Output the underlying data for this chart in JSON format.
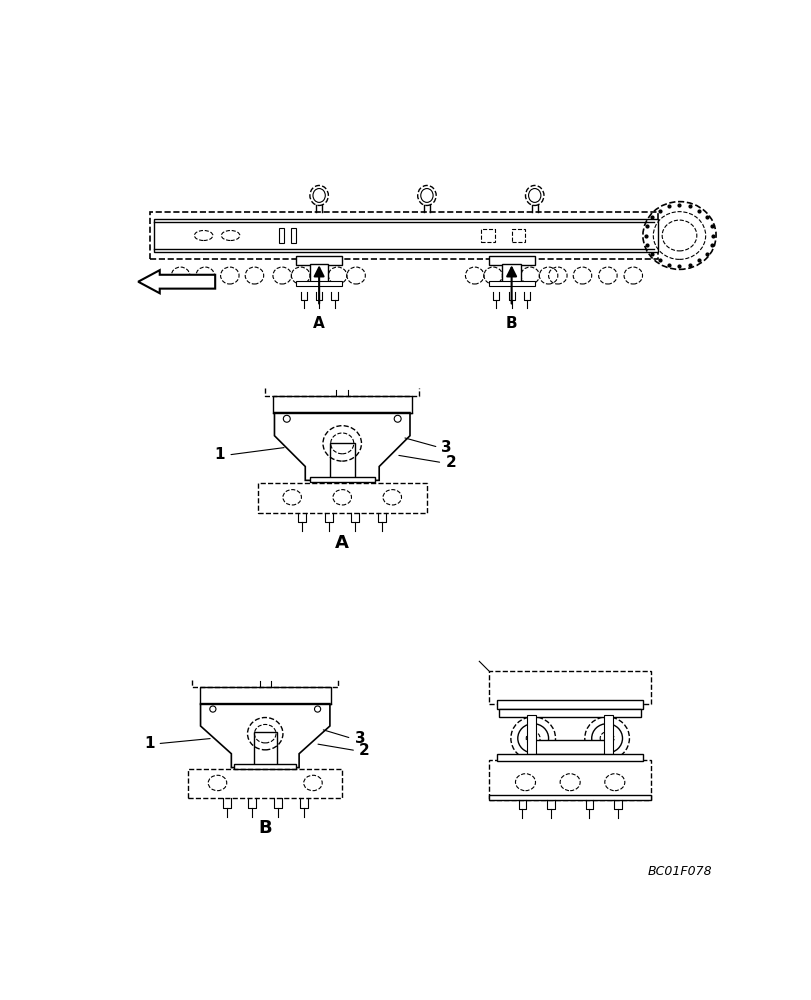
{
  "bg_color": "#ffffff",
  "line_color": "#000000",
  "figure_code": "BC01F078",
  "label_A": "A",
  "label_B": "B",
  "labels_123": [
    "1",
    "2",
    "3"
  ]
}
